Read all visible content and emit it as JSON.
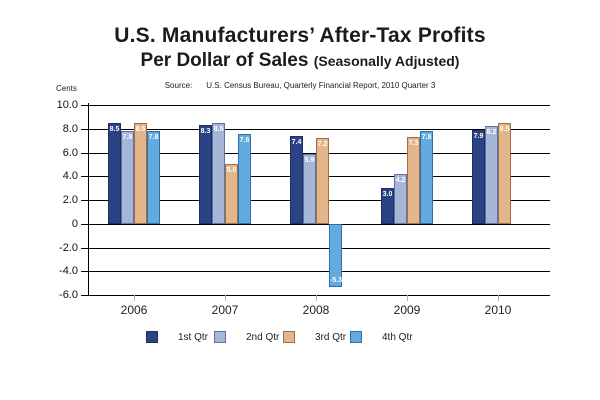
{
  "header": {
    "title_line1": "U.S. Manufacturers’ After-Tax Profits",
    "title_line2_main": "Per Dollar of Sales",
    "title_line2_paren": "(Seasonally Adjusted)",
    "source_label": "Source:",
    "source_text": "U.S. Census Bureau, Quarterly Financial Report, 2010 Quarter 3",
    "y_unit_label": "Cents"
  },
  "chart_data": {
    "type": "bar",
    "title": "U.S. Manufacturers’ After-Tax Profits Per Dollar of Sales (Seasonally Adjusted)",
    "xlabel": "",
    "ylabel": "Cents",
    "categories": [
      "2006",
      "2007",
      "2008",
      "2009",
      "2010"
    ],
    "series": [
      {
        "name": "1st Qtr",
        "color": "#2B4284",
        "border": "#1C2D5E",
        "values": [
          8.5,
          8.3,
          7.4,
          3.0,
          7.9
        ]
      },
      {
        "name": "2nd Qtr",
        "color": "#A6B6D7",
        "border": "#5B74A8",
        "values": [
          7.8,
          8.5,
          5.9,
          4.2,
          8.2
        ]
      },
      {
        "name": "3rd Qtr",
        "color": "#E4B58A",
        "border": "#9C7147",
        "values": [
          8.5,
          5.0,
          7.2,
          7.3,
          8.5
        ]
      },
      {
        "name": "4th Qtr",
        "color": "#63AADF",
        "border": "#2E6FA8",
        "values": [
          7.8,
          7.6,
          -5.3,
          7.8,
          null
        ]
      }
    ],
    "ylim": [
      -6,
      10
    ],
    "yticks": [
      10,
      8,
      6,
      4,
      2,
      0,
      -2,
      -4,
      -6
    ],
    "ytick_labels": [
      "10.0",
      "8.0",
      "6.0",
      "4.0",
      "2.0",
      "0",
      "-2.0",
      "-4.0",
      "-6.0"
    ],
    "grid": true,
    "legend_position": "bottom",
    "bar_value_labels": true,
    "x_tick_color": "#E8A272"
  }
}
